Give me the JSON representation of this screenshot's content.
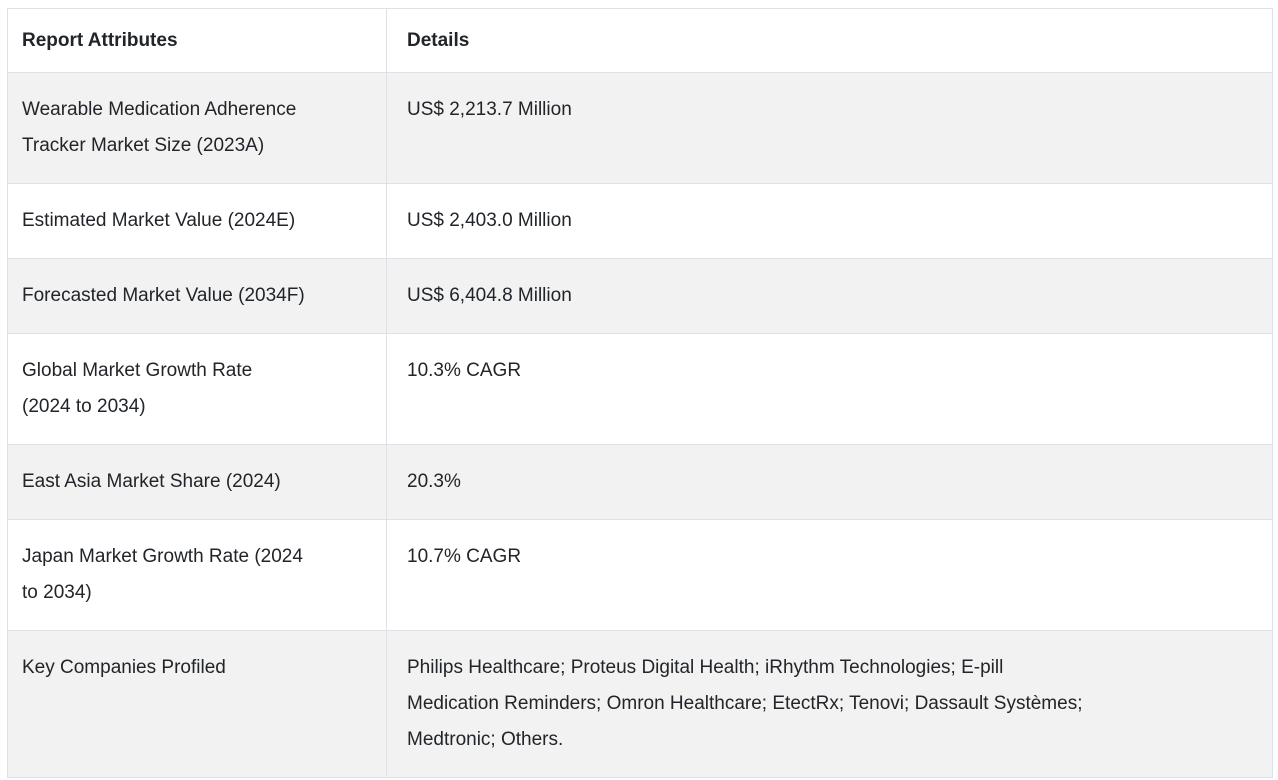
{
  "table": {
    "columns": [
      "Report Attributes",
      "Details"
    ],
    "rows": [
      {
        "attribute": "Wearable Medication Adherence\nTracker Market Size (2023A)",
        "details": "US$ 2,213.7 Million"
      },
      {
        "attribute": "Estimated Market Value (2024E)",
        "details": "US$ 2,403.0 Million"
      },
      {
        "attribute": "Forecasted Market Value (2034F)",
        "details": "US$ 6,404.8 Million"
      },
      {
        "attribute": "Global Market Growth Rate\n(2024 to 2034)",
        "details": "10.3% CAGR"
      },
      {
        "attribute": "East Asia Market Share (2024)",
        "details": "20.3%"
      },
      {
        "attribute": "Japan Market Growth Rate (2024\nto 2034)",
        "details": "10.7% CAGR"
      },
      {
        "attribute": "Key Companies Profiled",
        "details": "Philips Healthcare; Proteus Digital Health; iRhythm Technologies; E-pill\nMedication Reminders; Omron Healthcare; EtectRx; Tenovi; Dassault Systèmes;\nMedtronic; Others."
      }
    ],
    "colors": {
      "stripe_background": "#f2f2f2",
      "row_background": "#ffffff",
      "border": "#dee2e6",
      "text": "#212529",
      "page_background": "#ffffff"
    }
  }
}
